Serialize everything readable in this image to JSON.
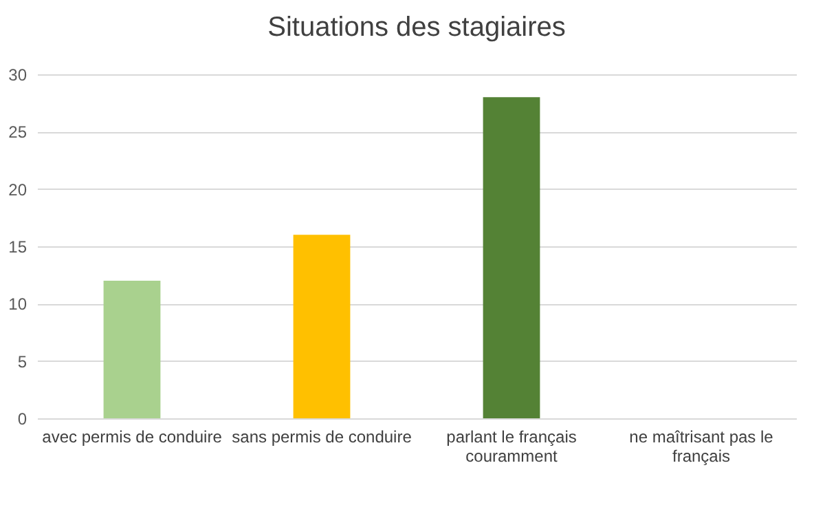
{
  "chart_data": {
    "type": "bar",
    "title": "Situations des stagiaires",
    "categories": [
      "avec permis de conduire",
      "sans permis de conduire",
      "parlant le français couramment",
      "ne maîtrisant pas le français"
    ],
    "values": [
      12,
      16,
      28,
      null
    ],
    "colors": [
      "#a9d18e",
      "#ffc000",
      "#548235",
      null
    ],
    "ylim": [
      0,
      30
    ],
    "yticks": [
      0,
      5,
      10,
      15,
      20,
      25,
      30
    ],
    "grid": "y"
  }
}
